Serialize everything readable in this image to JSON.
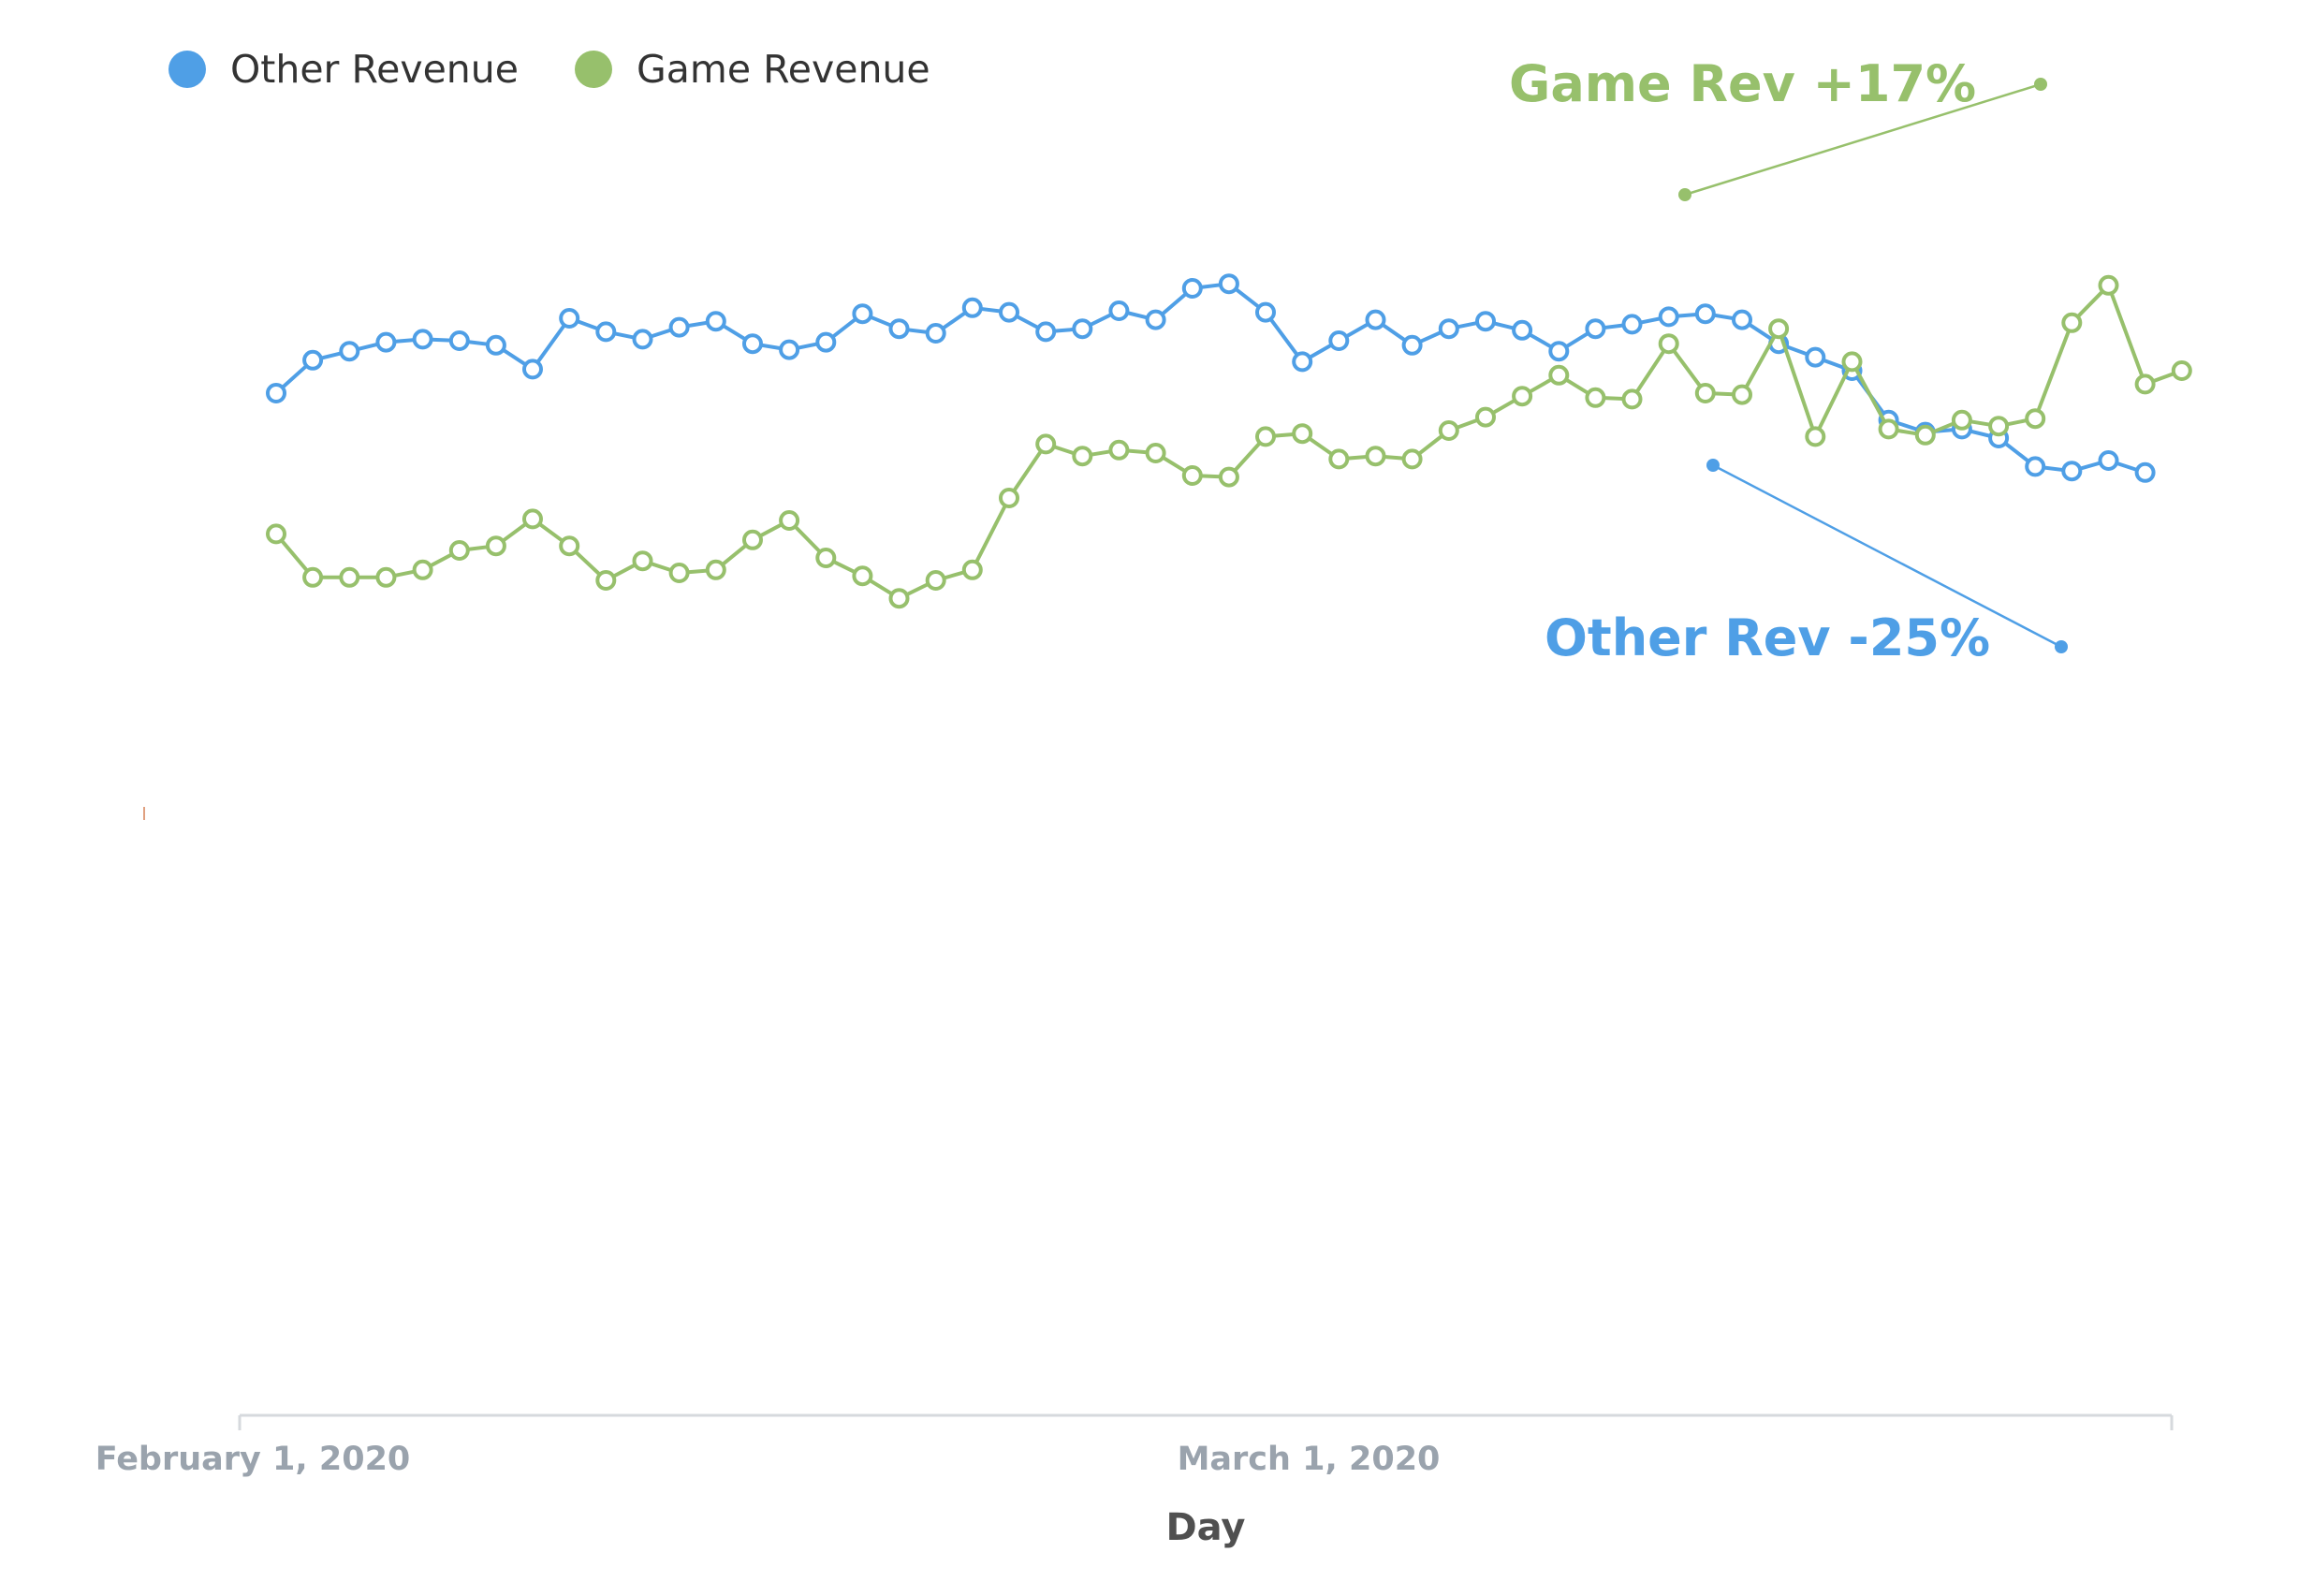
{
  "chart_data": {
    "type": "line",
    "xlabel": "Day",
    "x_ticks": [
      "February 1, 2020",
      "March 1, 2020"
    ],
    "legend": {
      "placement": "top-left"
    },
    "grid": false,
    "series": [
      {
        "name": "Other Revenue",
        "color": "#4f9fe6",
        "values": [
          100,
          122,
          128,
          134,
          136,
          135,
          132,
          116,
          150,
          141,
          136,
          144,
          148,
          133,
          129,
          134,
          153,
          143,
          140,
          157,
          154,
          141,
          143,
          155,
          149,
          170,
          173,
          154,
          121,
          135,
          149,
          132,
          143,
          148,
          142,
          128,
          143,
          146,
          151,
          153,
          149,
          133,
          124,
          115,
          82,
          74,
          76,
          70,
          51,
          48,
          55,
          47
        ]
      },
      {
        "name": "Game Revenue",
        "color": "#97c06c",
        "values": [
          6,
          -23,
          -23,
          -23,
          -18,
          -5,
          -2,
          16,
          -2,
          -25,
          -12,
          -20,
          -18,
          2,
          15,
          -10,
          -22,
          -37,
          -25,
          -18,
          30,
          66,
          58,
          62,
          60,
          45,
          44,
          71,
          73,
          56,
          58,
          56,
          75,
          84,
          98,
          112,
          97,
          96,
          133,
          100,
          99,
          143,
          71,
          121,
          76,
          72,
          82,
          78,
          83,
          147,
          172,
          106,
          115
        ]
      }
    ],
    "annotations": [
      {
        "text": "Game Rev +17%",
        "color": "#97c06c"
      },
      {
        "text": "Other Rev -25%",
        "color": "#4f9fe6"
      }
    ]
  }
}
